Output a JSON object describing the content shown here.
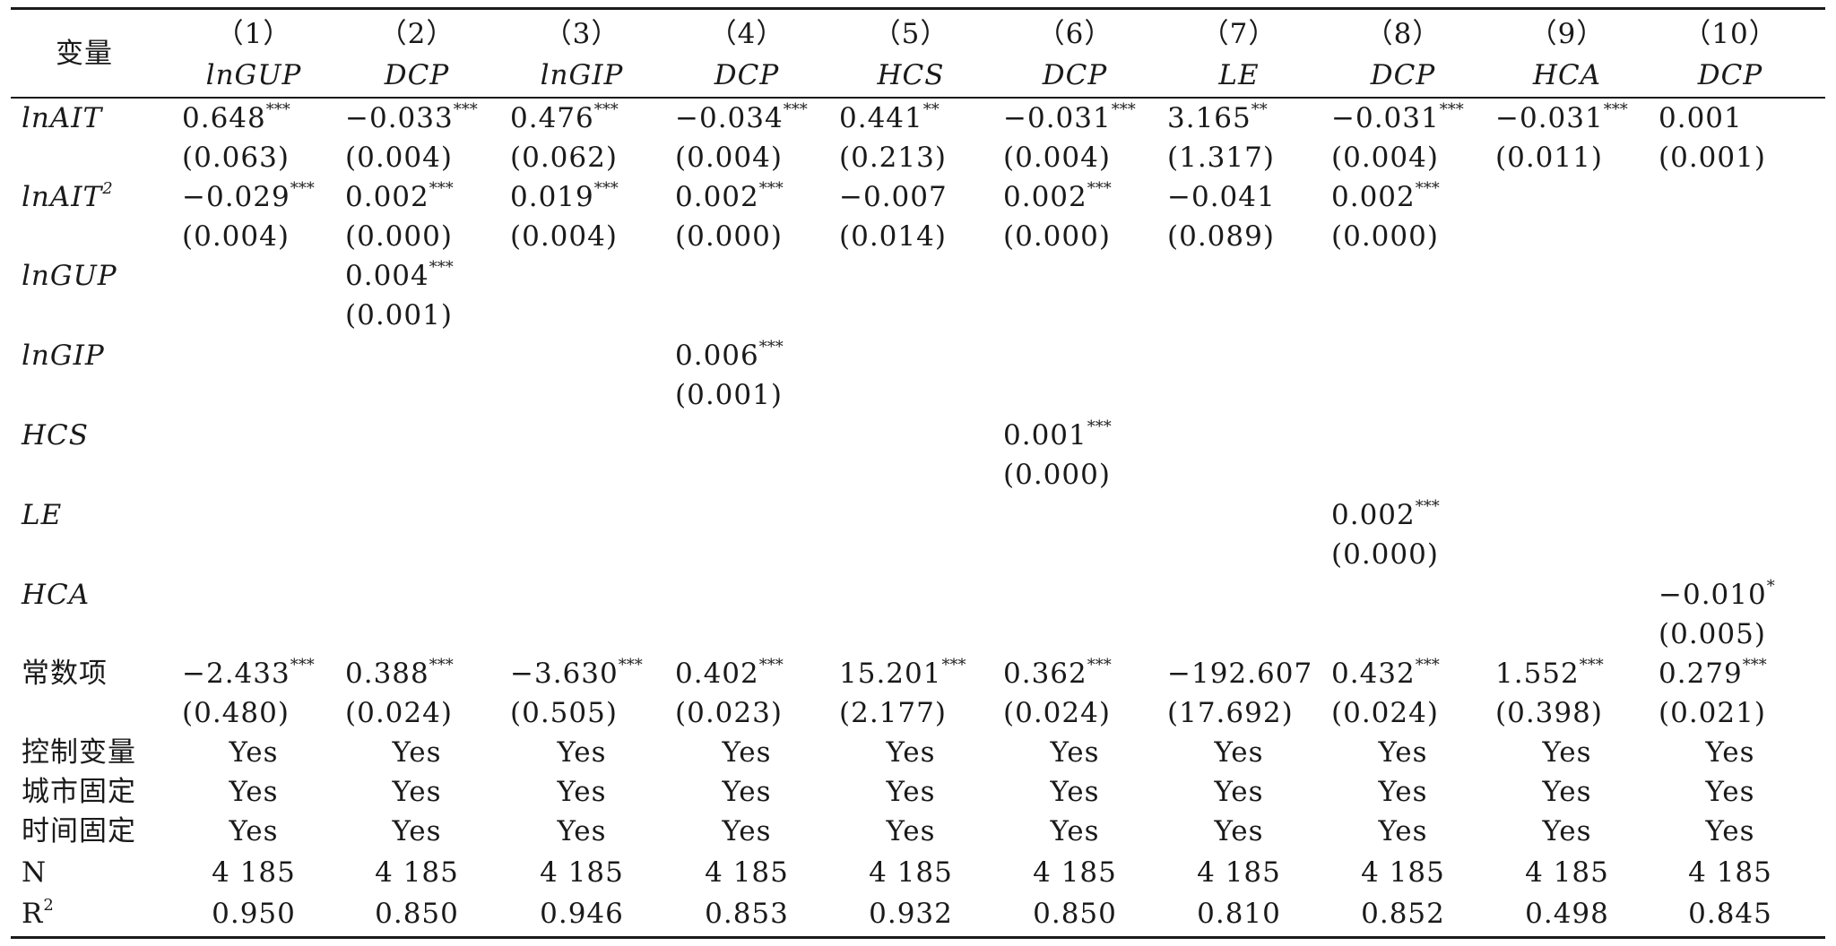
{
  "table": {
    "stub_header": "变量",
    "columns": [
      {
        "num": "（1）",
        "dep": "lnGUP"
      },
      {
        "num": "（2）",
        "dep": "DCP"
      },
      {
        "num": "（3）",
        "dep": "lnGIP"
      },
      {
        "num": "（4）",
        "dep": "DCP"
      },
      {
        "num": "（5）",
        "dep": "HCS"
      },
      {
        "num": "（6）",
        "dep": "DCP"
      },
      {
        "num": "（7）",
        "dep": "LE"
      },
      {
        "num": "（8）",
        "dep": "DCP"
      },
      {
        "num": "（9）",
        "dep": "HCA"
      },
      {
        "num": "（10）",
        "dep": "DCP"
      }
    ],
    "coef_rows": [
      {
        "label": "lnAIT",
        "sup": "",
        "coefs": [
          [
            "0.648",
            "***",
            "(0.063)"
          ],
          [
            "−0.033",
            "***",
            "(0.004)"
          ],
          [
            "0.476",
            "***",
            "(0.062)"
          ],
          [
            "−0.034",
            "***",
            "(0.004)"
          ],
          [
            "0.441",
            "**",
            "(0.213)"
          ],
          [
            "−0.031",
            "***",
            "(0.004)"
          ],
          [
            "3.165",
            "**",
            "(1.317)"
          ],
          [
            "−0.031",
            "***",
            "(0.004)"
          ],
          [
            "−0.031",
            "***",
            "(0.011)"
          ],
          [
            "0.001",
            "",
            "(0.001)"
          ]
        ]
      },
      {
        "label": "lnAIT",
        "sup": "2",
        "coefs": [
          [
            "−0.029",
            "***",
            "(0.004)"
          ],
          [
            "0.002",
            "***",
            "(0.000)"
          ],
          [
            "0.019",
            "***",
            "(0.004)"
          ],
          [
            "0.002",
            "***",
            "(0.000)"
          ],
          [
            "−0.007",
            "",
            "(0.014)"
          ],
          [
            "0.002",
            "***",
            "(0.000)"
          ],
          [
            "−0.041",
            "",
            "(0.089)"
          ],
          [
            "0.002",
            "***",
            "(0.000)"
          ],
          null,
          null
        ]
      },
      {
        "label": "lnGUP",
        "sup": "",
        "coefs": [
          null,
          [
            "0.004",
            "***",
            "(0.001)"
          ],
          null,
          null,
          null,
          null,
          null,
          null,
          null,
          null
        ]
      },
      {
        "label": "lnGIP",
        "sup": "",
        "coefs": [
          null,
          null,
          null,
          [
            "0.006",
            "***",
            "(0.001)"
          ],
          null,
          null,
          null,
          null,
          null,
          null
        ]
      },
      {
        "label": "HCS",
        "sup": "",
        "coefs": [
          null,
          null,
          null,
          null,
          null,
          [
            "0.001",
            "***",
            "(0.000)"
          ],
          null,
          null,
          null,
          null
        ]
      },
      {
        "label": "LE",
        "sup": "",
        "coefs": [
          null,
          null,
          null,
          null,
          null,
          null,
          null,
          [
            "0.002",
            "***",
            "(0.000)"
          ],
          null,
          null
        ]
      },
      {
        "label": "HCA",
        "sup": "",
        "coefs": [
          null,
          null,
          null,
          null,
          null,
          null,
          null,
          null,
          null,
          [
            "−0.010",
            "*",
            "(0.005)"
          ]
        ]
      },
      {
        "label": "常数项",
        "sup": "",
        "coefs": [
          [
            "−2.433",
            "***",
            "(0.480)"
          ],
          [
            "0.388",
            "***",
            "(0.024)"
          ],
          [
            "−3.630",
            "***",
            "(0.505)"
          ],
          [
            "0.402",
            "***",
            "(0.023)"
          ],
          [
            "15.201",
            "***",
            "(2.177)"
          ],
          [
            "0.362",
            "***",
            "(0.024)"
          ],
          [
            "−192.607",
            "",
            "(17.692)"
          ],
          [
            "0.432",
            "***",
            "(0.024)"
          ],
          [
            "1.552",
            "***",
            "(0.398)"
          ],
          [
            "0.279",
            "***",
            "(0.021)"
          ]
        ]
      }
    ],
    "stat_rows": [
      {
        "label": "控制变量",
        "values": [
          "Yes",
          "Yes",
          "Yes",
          "Yes",
          "Yes",
          "Yes",
          "Yes",
          "Yes",
          "Yes",
          "Yes"
        ]
      },
      {
        "label": "城市固定",
        "values": [
          "Yes",
          "Yes",
          "Yes",
          "Yes",
          "Yes",
          "Yes",
          "Yes",
          "Yes",
          "Yes",
          "Yes"
        ]
      },
      {
        "label": "时间固定",
        "values": [
          "Yes",
          "Yes",
          "Yes",
          "Yes",
          "Yes",
          "Yes",
          "Yes",
          "Yes",
          "Yes",
          "Yes"
        ]
      },
      {
        "label": "N",
        "values": [
          "4 185",
          "4 185",
          "4 185",
          "4 185",
          "4 185",
          "4 185",
          "4 185",
          "4 185",
          "4 185",
          "4 185"
        ]
      },
      {
        "label": "R",
        "sup": "2",
        "values": [
          "0.950",
          "0.850",
          "0.946",
          "0.853",
          "0.932",
          "0.850",
          "0.810",
          "0.852",
          "0.498",
          "0.845"
        ]
      }
    ]
  }
}
